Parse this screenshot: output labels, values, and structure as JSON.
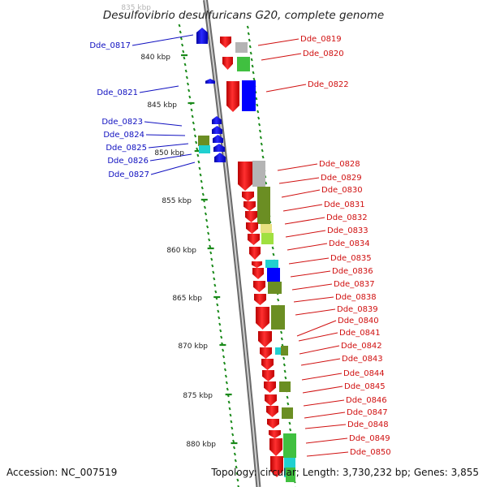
{
  "title": "Desulfovibrio desulfuricans G20, complete genome",
  "footer": {
    "accession": "Accession: NC_007519",
    "summary": "Topology: circular; Length: 3,730,232 bp; Genes: 3,855"
  },
  "scale": {
    "top_faded": "835 kbp",
    "ticks": [
      "840 kbp",
      "845 kbp",
      "850 kbp",
      "855 kbp",
      "860 kbp",
      "865 kbp",
      "870 kbp",
      "875 kbp",
      "880 kbp"
    ]
  },
  "left_labels": [
    "Dde_0817",
    "Dde_0821",
    "Dde_0823",
    "Dde_0824",
    "Dde_0825",
    "Dde_0826",
    "Dde_0827"
  ],
  "right_labels": [
    "Dde_0819",
    "Dde_0820",
    "Dde_0822",
    "Dde_0828",
    "Dde_0829",
    "Dde_0830",
    "Dde_0831",
    "Dde_0832",
    "Dde_0833",
    "Dde_0834",
    "Dde_0835",
    "Dde_0836",
    "Dde_0837",
    "Dde_0838",
    "Dde_0839",
    "Dde_0840",
    "Dde_0841",
    "Dde_0842",
    "Dde_0843",
    "Dde_0844",
    "Dde_0845",
    "Dde_0846",
    "Dde_0847",
    "Dde_0848",
    "Dde_0849",
    "Dde_0850"
  ],
  "colors": {
    "plus_strand": "#ff0000",
    "minus_strand": "#0000ff",
    "gray_feature": "#b4b4b4",
    "green_feature": "#40c040",
    "olive_feature": "#6b8e23",
    "cyan_feature": "#20d0d0",
    "khaki_feature": "#e8e080",
    "lime_feature": "#a0e040",
    "gc_dots": "#1a8a1a",
    "backbone": "#8c8c8c"
  }
}
